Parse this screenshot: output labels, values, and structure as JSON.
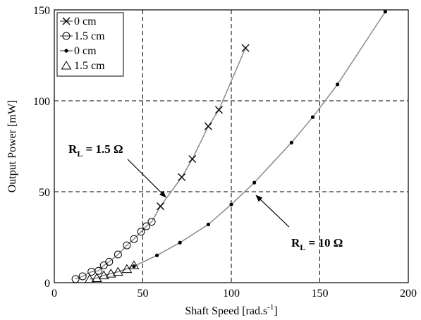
{
  "chart_data": {
    "type": "line",
    "xlabel": "Shaft Speed [rad.s",
    "xlabel_sup": "-1",
    "xlabel_end": "]",
    "ylabel": "Output Power [mW]",
    "xlim": [
      0,
      200
    ],
    "ylim": [
      0,
      150
    ],
    "x_ticks": [
      "0",
      "50",
      "100",
      "150",
      "200"
    ],
    "y_ticks": [
      "0",
      "50",
      "100",
      "150"
    ],
    "grid": true,
    "legend_position": "top-left",
    "series": [
      {
        "name": "0 cm",
        "marker": "x",
        "points": [
          [
            60,
            42
          ],
          [
            72,
            58
          ],
          [
            78,
            68
          ],
          [
            87,
            86
          ],
          [
            93,
            95
          ],
          [
            108,
            129
          ]
        ]
      },
      {
        "name": "1.5 cm",
        "marker": "circle",
        "points": [
          [
            12,
            2
          ],
          [
            16,
            3.5
          ],
          [
            21,
            6
          ],
          [
            25,
            6.5
          ],
          [
            28,
            9.5
          ],
          [
            31,
            11.5
          ],
          [
            36,
            15.5
          ],
          [
            41,
            20.5
          ],
          [
            45,
            24
          ],
          [
            49,
            28
          ],
          [
            52,
            31
          ],
          [
            55,
            33.5
          ]
        ]
      },
      {
        "name": "0 cm",
        "marker": "dot",
        "points": [
          [
            45,
            9
          ],
          [
            58,
            15
          ],
          [
            71,
            22
          ],
          [
            87,
            32
          ],
          [
            100,
            43
          ],
          [
            113,
            55
          ],
          [
            134,
            77
          ],
          [
            146,
            91
          ],
          [
            160,
            109
          ],
          [
            187,
            149
          ]
        ]
      },
      {
        "name": "1.5 cm",
        "marker": "triangle",
        "points": [
          [
            20,
            2
          ],
          [
            24,
            2.5
          ],
          [
            28,
            4
          ],
          [
            32,
            5
          ],
          [
            36,
            6
          ],
          [
            41,
            7.5
          ],
          [
            45,
            9.5
          ]
        ]
      }
    ],
    "curves": [
      {
        "series": [
          1,
          0
        ],
        "color": "#8a8a8a"
      },
      {
        "series": [
          3,
          2
        ],
        "color": "#8a8a8a"
      }
    ],
    "annotations": [
      {
        "label": "R",
        "sub": "L",
        "rest": " = 1.5 Ω"
      },
      {
        "label": "R",
        "sub": "L",
        "rest": " = 10 Ω"
      }
    ]
  }
}
